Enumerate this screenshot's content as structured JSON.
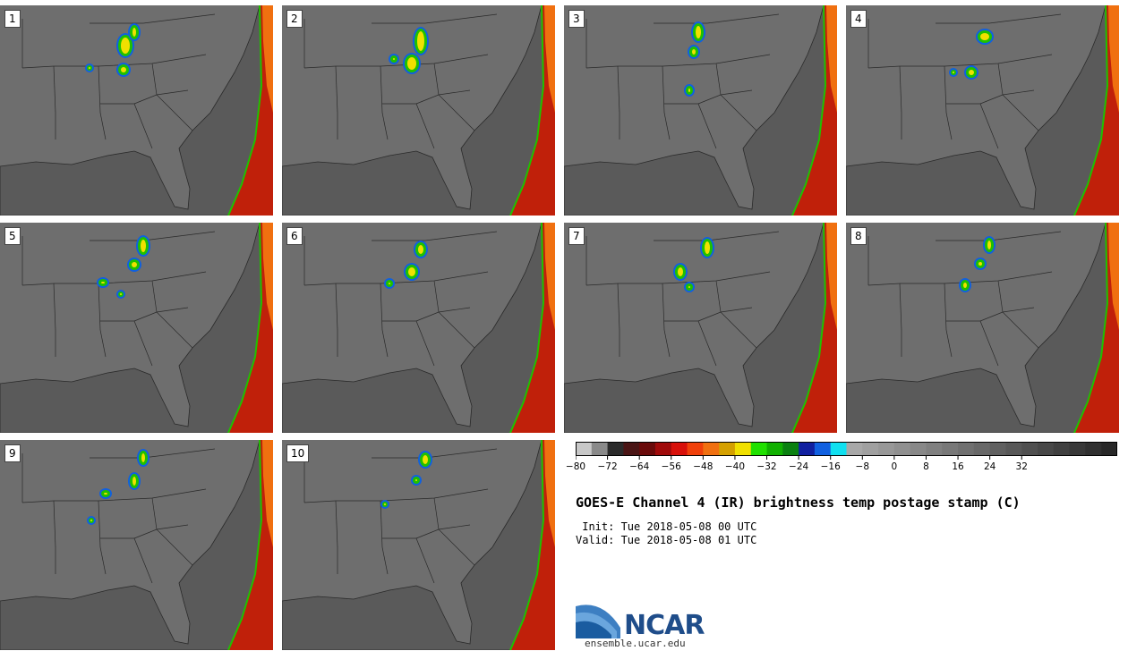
{
  "panels": [
    {
      "label": "1"
    },
    {
      "label": "2"
    },
    {
      "label": "3"
    },
    {
      "label": "4"
    },
    {
      "label": "5"
    },
    {
      "label": "6"
    },
    {
      "label": "7"
    },
    {
      "label": "8"
    },
    {
      "label": "9"
    },
    {
      "label": "10"
    }
  ],
  "colorbar": {
    "colors": [
      "#c8c8c8",
      "#8a8a8a",
      "#2b2b2b",
      "#4a1515",
      "#6a0a0a",
      "#a00a0a",
      "#d8100a",
      "#f0400a",
      "#f07010",
      "#d4a000",
      "#f0e000",
      "#20e000",
      "#10b000",
      "#0a8010",
      "#1020a0",
      "#1060e0",
      "#10e0f0",
      "#a8a8a8",
      "#a0a0a0",
      "#989898",
      "#909090",
      "#888888",
      "#808080",
      "#787878",
      "#707070",
      "#686868",
      "#606060",
      "#585858",
      "#505050",
      "#484848",
      "#404040",
      "#383838",
      "#303030",
      "#282828"
    ],
    "ticks": [
      "−80",
      "−72",
      "−64",
      "−56",
      "−48",
      "−40",
      "−32",
      "−24",
      "−16",
      "−8",
      "0",
      "8",
      "16",
      "24",
      "32"
    ]
  },
  "title": "GOES-E Channel 4 (IR) brightness temp postage stamp (C)",
  "init_line": " Init: Tue 2018-05-08 00 UTC",
  "valid_line": "Valid: Tue 2018-05-08 01 UTC",
  "logo": {
    "text": "NCAR",
    "site": "ensemble.ucar.edu"
  },
  "map_colors": {
    "land": "#6e6e6e",
    "ocean": "#5a5a5a",
    "borders": "#2a2a2a"
  }
}
